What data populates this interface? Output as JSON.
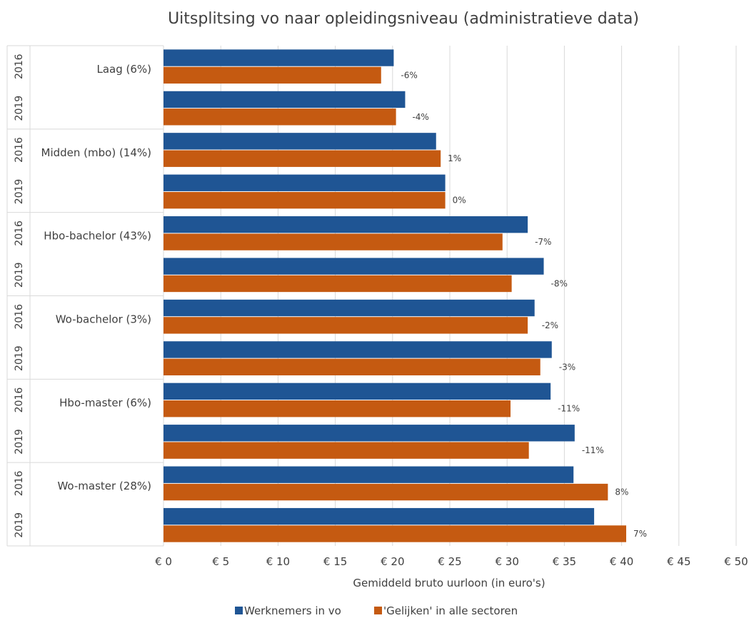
{
  "chart_data": {
    "type": "bar",
    "orientation": "horizontal",
    "title": "Uitsplitsing vo naar opleidingsniveau (administratieve data)",
    "xlabel": "Gemiddeld bruto uurloon (in euro's)",
    "xlim": [
      0,
      50
    ],
    "xticks": [
      "€ 0",
      "€ 5",
      "€ 10",
      "€ 15",
      "€ 20",
      "€ 25",
      "€ 30",
      "€ 35",
      "€ 40",
      "€ 45",
      "€ 50"
    ],
    "xtick_values": [
      0,
      5,
      10,
      15,
      20,
      25,
      30,
      35,
      40,
      45,
      50
    ],
    "grid": "vertical",
    "legend_position": "bottom",
    "groups": [
      {
        "label": "Laag (6%)",
        "years": [
          {
            "year": "2016",
            "vo": 20.1,
            "gelijken": 19.0,
            "diff_label": "-6%"
          },
          {
            "year": "2019",
            "vo": 21.1,
            "gelijken": 20.3,
            "diff_label": "-4%"
          }
        ]
      },
      {
        "label": "Midden (mbo) (14%)",
        "years": [
          {
            "year": "2016",
            "vo": 23.8,
            "gelijken": 24.2,
            "diff_label": "1%"
          },
          {
            "year": "2019",
            "vo": 24.6,
            "gelijken": 24.6,
            "diff_label": "0%"
          }
        ]
      },
      {
        "label": "Hbo-bachelor (43%)",
        "years": [
          {
            "year": "2016",
            "vo": 31.8,
            "gelijken": 29.6,
            "diff_label": "-7%"
          },
          {
            "year": "2019",
            "vo": 33.2,
            "gelijken": 30.4,
            "diff_label": "-8%"
          }
        ]
      },
      {
        "label": "Wo-bachelor (3%)",
        "years": [
          {
            "year": "2016",
            "vo": 32.4,
            "gelijken": 31.8,
            "diff_label": "-2%"
          },
          {
            "year": "2019",
            "vo": 33.9,
            "gelijken": 32.9,
            "diff_label": "-3%"
          }
        ]
      },
      {
        "label": "Hbo-master (6%)",
        "years": [
          {
            "year": "2016",
            "vo": 33.8,
            "gelijken": 30.3,
            "diff_label": "-11%"
          },
          {
            "year": "2019",
            "vo": 35.9,
            "gelijken": 31.9,
            "diff_label": "-11%"
          }
        ]
      },
      {
        "label": "Wo-master (28%)",
        "years": [
          {
            "year": "2016",
            "vo": 35.8,
            "gelijken": 38.8,
            "diff_label": "8%"
          },
          {
            "year": "2019",
            "vo": 37.6,
            "gelijken": 40.4,
            "diff_label": "7%"
          }
        ]
      }
    ],
    "series": [
      {
        "key": "vo",
        "name": "Werknemers in vo",
        "color": "#1f5594"
      },
      {
        "key": "gelijken",
        "name": "'Gelijken' in alle sectoren",
        "color": "#c55a11"
      }
    ]
  }
}
